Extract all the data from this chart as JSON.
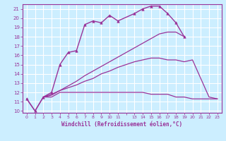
{
  "xlabel": "Windchill (Refroidissement éolien,°C)",
  "bg_color": "#cceeff",
  "grid_color": "#ffffff",
  "line_color": "#993399",
  "xlim": [
    -0.5,
    23.5
  ],
  "ylim": [
    9.8,
    21.5
  ],
  "yticks": [
    10,
    11,
    12,
    13,
    14,
    15,
    16,
    17,
    18,
    19,
    20,
    21
  ],
  "lines": [
    {
      "x": [
        0,
        1,
        2,
        3,
        4,
        5,
        6,
        7,
        8,
        9,
        10,
        11,
        13,
        14,
        15,
        16,
        17,
        18,
        19
      ],
      "y": [
        11.3,
        10.0,
        11.5,
        12.0,
        15.0,
        16.3,
        16.5,
        19.3,
        19.7,
        19.5,
        20.3,
        19.7,
        20.5,
        21.0,
        21.3,
        21.3,
        20.5,
        19.5,
        18.0
      ],
      "marker": "^",
      "markersize": 2.5,
      "linewidth": 1.0
    },
    {
      "x": [
        0,
        1,
        2,
        3,
        4,
        5,
        6,
        7,
        8,
        9,
        10,
        11,
        12,
        13,
        14,
        15,
        16,
        17,
        18,
        19,
        20,
        21,
        22,
        23
      ],
      "y": [
        11.3,
        10.0,
        11.5,
        11.5,
        12.0,
        12.0,
        12.0,
        12.0,
        12.0,
        12.0,
        12.0,
        12.0,
        12.0,
        12.0,
        12.0,
        11.8,
        11.8,
        11.8,
        11.5,
        11.5,
        11.3,
        11.3,
        11.3,
        11.3
      ],
      "marker": null,
      "linewidth": 0.9
    },
    {
      "x": [
        2,
        3,
        4,
        5,
        6,
        7,
        8,
        9,
        10,
        11,
        13,
        14,
        15,
        16,
        17,
        18,
        19
      ],
      "y": [
        11.5,
        11.7,
        12.2,
        12.7,
        13.2,
        13.8,
        14.3,
        14.8,
        15.3,
        15.8,
        16.8,
        17.3,
        17.8,
        18.3,
        18.5,
        18.5,
        18.0
      ],
      "marker": null,
      "linewidth": 0.9
    },
    {
      "x": [
        2,
        3,
        4,
        5,
        6,
        7,
        8,
        9,
        10,
        11,
        13,
        14,
        15,
        16,
        17,
        18,
        19,
        20,
        21,
        22,
        23
      ],
      "y": [
        11.5,
        11.8,
        12.2,
        12.5,
        12.8,
        13.2,
        13.5,
        14.0,
        14.3,
        14.7,
        15.3,
        15.5,
        15.7,
        15.7,
        15.5,
        15.5,
        15.3,
        15.5,
        13.5,
        11.5,
        11.3
      ],
      "marker": null,
      "linewidth": 0.9
    }
  ]
}
